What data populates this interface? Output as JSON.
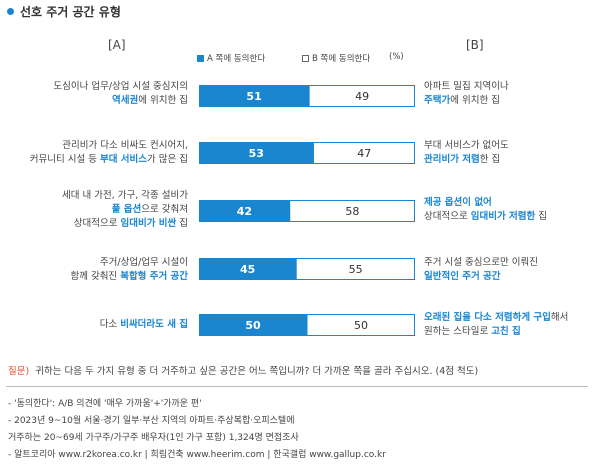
{
  "title": "선호 주거 공간 유형",
  "header": {
    "left": "[A]",
    "right": "[B]"
  },
  "legend": {
    "a": "A 쪽에 동의한다",
    "b": "B 쪽에 동의한다",
    "unit": "(%)"
  },
  "colors": {
    "a": "#1a86d0",
    "b": "#ffffff",
    "highlight": "#1a86d0"
  },
  "rows": [
    {
      "a_line1": "도심이나 업무/상업 시설 중심지의",
      "a_line2_hl": "역세권",
      "a_line2_rest": "에 위치한 집",
      "b_line1": "아파트 밀집 지역이나",
      "b_line2_hl": "주택가",
      "b_line2_rest": "에 위치한 집"
    },
    {
      "a_line1": "관리비가 다소 비싸도 컨시어지,",
      "a_line2_pre": "커뮤니티 시설 등 ",
      "a_line2_hl": "부대 서비스",
      "a_line2_rest": "가 많은 집",
      "b_line1": "부대 서비스가 없어도",
      "b_line2_hl": "관리비가 저렴",
      "b_line2_rest": "한 집"
    },
    {
      "a_line1": "세대 내 가전, 가구, 각종 설비가",
      "a_line2_hl": "풀 옵션",
      "a_line2_rest": "으로 갖춰져",
      "a_line3_pre": "상대적으로 ",
      "a_line3_hl": "임대비가 비싼",
      "a_line3_rest": " 집",
      "b_line1_hl": "제공 옵션이 없어",
      "b_line2_pre": "상대적으로 ",
      "b_line2_hl": "임대비가 저렴한",
      "b_line2_rest": " 집"
    },
    {
      "a_line1": "주거/상업/업무 시설이",
      "a_line2_pre": "함께 갖춰진 ",
      "a_line2_hl": "복합형 주거 공간",
      "b_line1": "주거 시설 중심으로만 이뤄진",
      "b_line2_hl": "일반적인 주거 공간"
    },
    {
      "a_line1_pre": "다소 ",
      "a_line1_hl": "비싸더라도 새 집",
      "b_line1_hl": "오래된 집을 다소 저렴하게 구입",
      "b_line1_rest": "해서",
      "b_line2_pre": "원하는 스타일로 ",
      "b_line2_hl": "고친 집"
    }
  ],
  "chart_data": {
    "type": "bar",
    "stacked": true,
    "orientation": "horizontal",
    "unit": "%",
    "categories": [
      "도심이나 업무/상업 시설 중심지의 역세권에 위치한 집 vs 아파트 밀집 지역이나 주택가에 위치한 집",
      "관리비가 다소 비싸도 컨시어지, 커뮤니티 시설 등 부대 서비스가 많은 집 vs 부대 서비스가 없어도 관리비가 저렴한 집",
      "세대 내 가전, 가구, 각종 설비가 풀 옵션으로 갖춰져 상대적으로 임대비가 비싼 집 vs 제공 옵션이 없어 상대적으로 임대비가 저렴한 집",
      "주거/상업/업무 시설이 함께 갖춰진 복합형 주거 공간 vs 주거 시설 중심으로만 이뤄진 일반적인 주거 공간",
      "다소 비싸더라도 새 집 vs 오래된 집을 다소 저렴하게 구입해서 원하는 스타일로 고친 집"
    ],
    "series": [
      {
        "name": "A 쪽에 동의한다",
        "values": [
          51,
          53,
          42,
          45,
          50
        ]
      },
      {
        "name": "B 쪽에 동의한다",
        "values": [
          49,
          47,
          58,
          55,
          50
        ]
      }
    ],
    "xlim": [
      0,
      100
    ]
  },
  "question": {
    "label": "질문)",
    "text": "귀하는 다음 두 가지 유형 중 더 거주하고 싶은 공간은 어느 쪽입니까? 더 가까운 쪽을 골라 주십시오. (4점 척도)"
  },
  "notes": [
    "- '동의한다': A/B 의견에 '매우 가까움'+'가까운 편'",
    "- 2023년 9~10월 서울·경기 일부·부산   지역의 아파트·주상복합·오피스텔에",
    "   거주하는 20~69세 가구주/가구주 배우자(1인 가구 포함) 1,324명 면접조사",
    "- 알트코리아 www.r2korea.co.kr | 희림건축 www.heerim.com | 한국갤럽 www.gallup.co.kr"
  ]
}
